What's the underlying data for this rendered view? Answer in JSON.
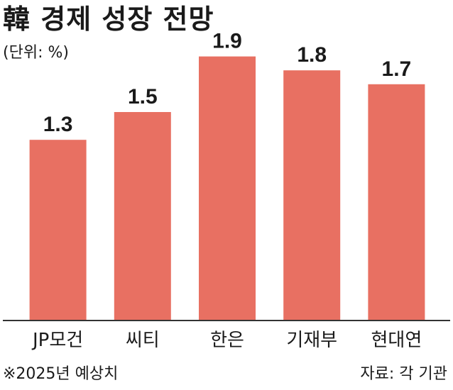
{
  "title": "韓 경제 성장 전망",
  "unit": "(단위: %)",
  "footnote": "※2025년 예상치",
  "source": "자료: 각 기관",
  "colors": {
    "bar": "#e87062",
    "axis": "#333333",
    "text": "#1a1a1a"
  },
  "chart_data": {
    "type": "bar",
    "categories": [
      "JP모건",
      "씨티",
      "한은",
      "기재부",
      "현대연"
    ],
    "values": [
      1.3,
      1.5,
      1.9,
      1.8,
      1.7
    ],
    "value_labels": [
      "1.3",
      "1.5",
      "1.9",
      "1.8",
      "1.7"
    ],
    "ylim": [
      0,
      2.0
    ],
    "grid": false,
    "legend": "none"
  }
}
